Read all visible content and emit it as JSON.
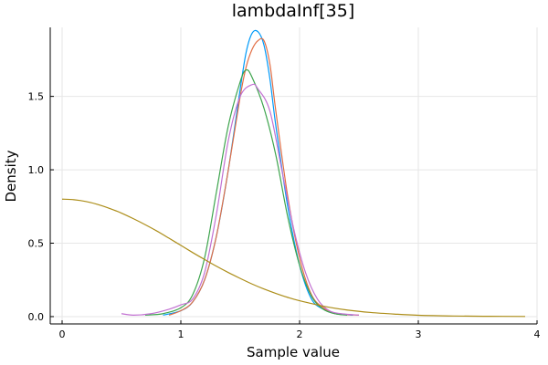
{
  "chart_data": {
    "type": "line",
    "title": "lambdaInf[35]",
    "xlabel": "Sample value",
    "ylabel": "Density",
    "xlim": [
      -0.1,
      4.0
    ],
    "ylim": [
      -0.05,
      1.97
    ],
    "xticks": [
      0,
      1,
      2,
      3,
      4
    ],
    "xtick_labels": [
      "0",
      "1",
      "2",
      "3",
      "4"
    ],
    "yticks": [
      0.0,
      0.5,
      1.0,
      1.5
    ],
    "ytick_labels": [
      "0.0",
      "0.5",
      "1.0",
      "1.5"
    ],
    "grid": true,
    "legend": "none",
    "series": [
      {
        "color": "#009af9",
        "points": [
          [
            0.85,
            0.01
          ],
          [
            1.0,
            0.04
          ],
          [
            1.1,
            0.1
          ],
          [
            1.2,
            0.25
          ],
          [
            1.3,
            0.55
          ],
          [
            1.4,
            1.0
          ],
          [
            1.5,
            1.55
          ],
          [
            1.55,
            1.8
          ],
          [
            1.6,
            1.93
          ],
          [
            1.65,
            1.94
          ],
          [
            1.7,
            1.85
          ],
          [
            1.75,
            1.62
          ],
          [
            1.8,
            1.3
          ],
          [
            1.9,
            0.75
          ],
          [
            2.0,
            0.35
          ],
          [
            2.1,
            0.12
          ],
          [
            2.2,
            0.05
          ],
          [
            2.3,
            0.02
          ],
          [
            2.45,
            0.01
          ]
        ]
      },
      {
        "color": "#e26f46",
        "points": [
          [
            0.9,
            0.01
          ],
          [
            1.0,
            0.04
          ],
          [
            1.1,
            0.1
          ],
          [
            1.2,
            0.25
          ],
          [
            1.3,
            0.55
          ],
          [
            1.4,
            1.0
          ],
          [
            1.5,
            1.5
          ],
          [
            1.55,
            1.7
          ],
          [
            1.6,
            1.82
          ],
          [
            1.65,
            1.88
          ],
          [
            1.7,
            1.88
          ],
          [
            1.75,
            1.72
          ],
          [
            1.8,
            1.4
          ],
          [
            1.9,
            0.82
          ],
          [
            2.0,
            0.4
          ],
          [
            2.1,
            0.15
          ],
          [
            2.2,
            0.06
          ],
          [
            2.3,
            0.02
          ],
          [
            2.5,
            0.01
          ]
        ]
      },
      {
        "color": "#3da44d",
        "points": [
          [
            0.7,
            0.01
          ],
          [
            0.85,
            0.02
          ],
          [
            1.0,
            0.06
          ],
          [
            1.1,
            0.15
          ],
          [
            1.2,
            0.4
          ],
          [
            1.3,
            0.85
          ],
          [
            1.4,
            1.3
          ],
          [
            1.5,
            1.6
          ],
          [
            1.55,
            1.68
          ],
          [
            1.6,
            1.63
          ],
          [
            1.7,
            1.42
          ],
          [
            1.8,
            1.1
          ],
          [
            1.9,
            0.68
          ],
          [
            2.0,
            0.35
          ],
          [
            2.1,
            0.14
          ],
          [
            2.2,
            0.05
          ],
          [
            2.3,
            0.02
          ],
          [
            2.4,
            0.01
          ]
        ]
      },
      {
        "color": "#c271d2",
        "points": [
          [
            0.5,
            0.02
          ],
          [
            0.6,
            0.01
          ],
          [
            0.75,
            0.02
          ],
          [
            0.9,
            0.05
          ],
          [
            1.0,
            0.08
          ],
          [
            1.1,
            0.12
          ],
          [
            1.2,
            0.3
          ],
          [
            1.3,
            0.7
          ],
          [
            1.4,
            1.2
          ],
          [
            1.5,
            1.5
          ],
          [
            1.6,
            1.58
          ],
          [
            1.65,
            1.55
          ],
          [
            1.75,
            1.4
          ],
          [
            1.85,
            1.0
          ],
          [
            1.95,
            0.6
          ],
          [
            2.05,
            0.3
          ],
          [
            2.15,
            0.12
          ],
          [
            2.25,
            0.04
          ],
          [
            2.35,
            0.02
          ],
          [
            2.5,
            0.01
          ]
        ]
      },
      {
        "color": "#ac8d18",
        "points": [
          [
            0.0,
            0.8
          ],
          [
            0.1,
            0.796
          ],
          [
            0.2,
            0.784
          ],
          [
            0.3,
            0.764
          ],
          [
            0.4,
            0.737
          ],
          [
            0.5,
            0.705
          ],
          [
            0.6,
            0.667
          ],
          [
            0.7,
            0.626
          ],
          [
            0.8,
            0.582
          ],
          [
            0.9,
            0.534
          ],
          [
            1.0,
            0.485
          ],
          [
            1.1,
            0.436
          ],
          [
            1.2,
            0.389
          ],
          [
            1.3,
            0.343
          ],
          [
            1.4,
            0.3
          ],
          [
            1.5,
            0.26
          ],
          [
            1.6,
            0.222
          ],
          [
            1.7,
            0.188
          ],
          [
            1.8,
            0.158
          ],
          [
            1.9,
            0.131
          ],
          [
            2.0,
            0.108
          ],
          [
            2.2,
            0.071
          ],
          [
            2.4,
            0.045
          ],
          [
            2.6,
            0.028
          ],
          [
            2.8,
            0.017
          ],
          [
            3.0,
            0.009
          ],
          [
            3.3,
            0.004
          ],
          [
            3.6,
            0.002
          ],
          [
            3.9,
            0.001
          ]
        ]
      }
    ]
  }
}
